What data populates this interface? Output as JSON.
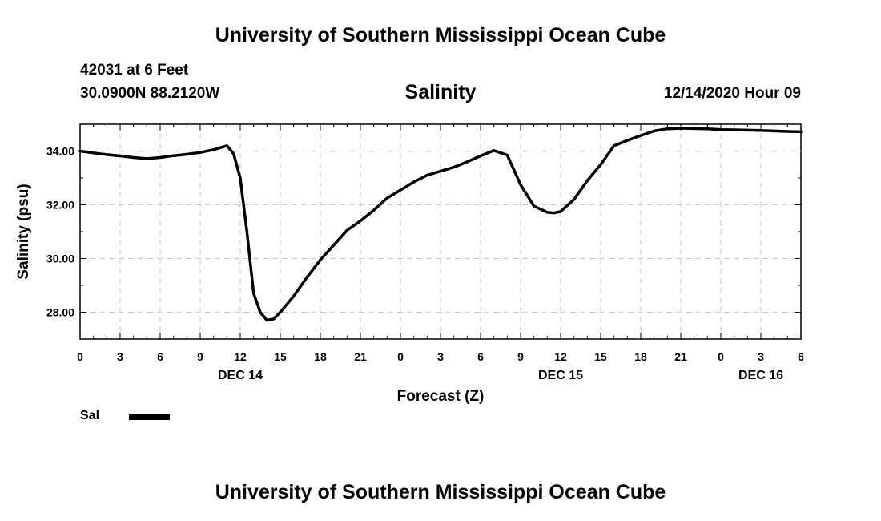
{
  "header": {
    "title": "University of Southern Mississippi Ocean Cube",
    "station": "42031 at 6 Feet",
    "coords": "30.0900N 88.2120W",
    "issued": "12/14/2020 Hour 09"
  },
  "footer": {
    "title": "University of Southern Mississippi Ocean Cube"
  },
  "legend": {
    "label": "Sal"
  },
  "chart_data": {
    "type": "line",
    "title": "Salinity",
    "xlabel": "Forecast (Z)",
    "ylabel": "Salinity (psu)",
    "xlim": [
      0,
      54
    ],
    "ylim": [
      27.0,
      35.0
    ],
    "yticks": [
      28.0,
      30.0,
      32.0,
      34.0
    ],
    "ytick_labels": [
      "28.00",
      "30.00",
      "32.00",
      "34.00"
    ],
    "xticks": [
      0,
      3,
      6,
      9,
      12,
      15,
      18,
      21,
      24,
      27,
      30,
      33,
      36,
      39,
      42,
      45,
      48,
      51,
      54
    ],
    "xtick_labels": [
      "0",
      "3",
      "6",
      "9",
      "12",
      "15",
      "18",
      "21",
      "0",
      "3",
      "6",
      "9",
      "12",
      "15",
      "18",
      "21",
      "0",
      "3",
      "6"
    ],
    "date_labels": [
      {
        "x": 12,
        "label": "DEC 14"
      },
      {
        "x": 36,
        "label": "DEC 15"
      },
      {
        "x": 51,
        "label": "DEC 16"
      }
    ],
    "grid": true,
    "legend_position": "bottom-left",
    "color": "#000000",
    "series": [
      {
        "name": "Sal",
        "x": [
          0,
          1,
          2,
          3,
          4,
          5,
          6,
          7,
          8,
          9,
          10,
          11,
          11.5,
          12,
          12.5,
          13,
          13.5,
          14,
          14.5,
          15,
          16,
          17,
          18,
          19,
          20,
          21,
          22,
          23,
          24,
          25,
          26,
          27,
          28,
          29,
          30,
          31,
          32,
          32.5,
          33,
          34,
          35,
          35.5,
          36,
          37,
          38,
          39,
          40,
          41,
          42,
          43,
          44,
          45,
          46,
          47,
          48,
          49,
          50,
          51,
          52,
          53,
          54
        ],
        "values": [
          34.0,
          33.93,
          33.87,
          33.82,
          33.76,
          33.72,
          33.76,
          33.83,
          33.88,
          33.95,
          34.05,
          34.2,
          33.9,
          33.0,
          31.0,
          28.7,
          28.0,
          27.7,
          27.75,
          28.0,
          28.6,
          29.3,
          29.95,
          30.5,
          31.05,
          31.4,
          31.8,
          32.25,
          32.55,
          32.85,
          33.1,
          33.25,
          33.4,
          33.6,
          33.82,
          34.02,
          33.85,
          33.3,
          32.75,
          31.95,
          31.72,
          31.7,
          31.75,
          32.2,
          32.9,
          33.5,
          34.2,
          34.4,
          34.58,
          34.75,
          34.83,
          34.85,
          34.84,
          34.83,
          34.8,
          34.79,
          34.78,
          34.77,
          34.75,
          34.73,
          34.72
        ]
      }
    ]
  }
}
